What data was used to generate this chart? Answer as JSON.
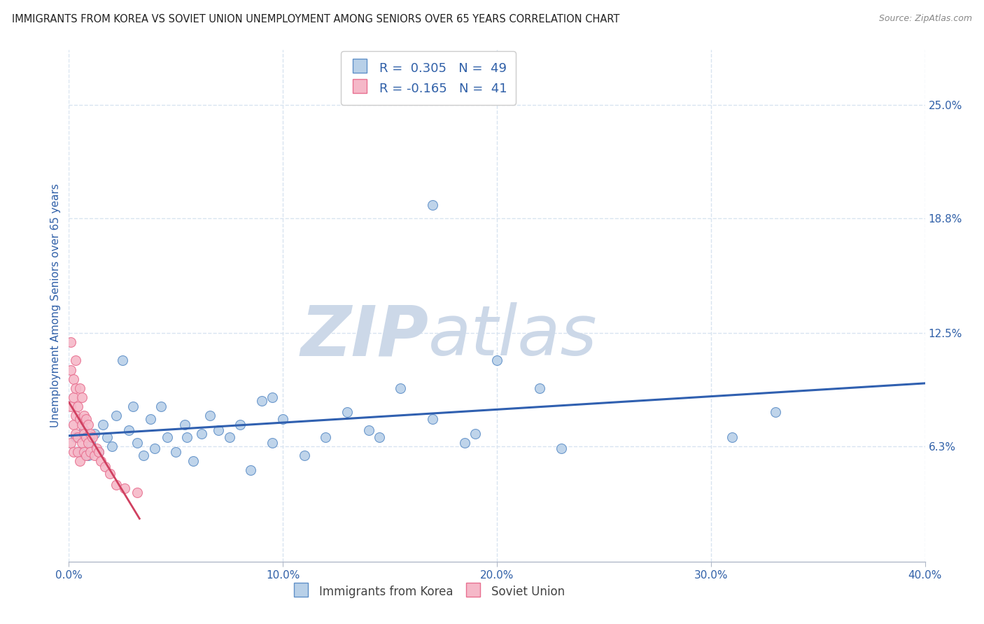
{
  "title": "IMMIGRANTS FROM KOREA VS SOVIET UNION UNEMPLOYMENT AMONG SENIORS OVER 65 YEARS CORRELATION CHART",
  "source": "Source: ZipAtlas.com",
  "xlabel_korea": "Immigrants from Korea",
  "xlabel_soviet": "Soviet Union",
  "ylabel": "Unemployment Among Seniors over 65 years",
  "xlim": [
    0.0,
    0.4
  ],
  "ylim": [
    0.0,
    0.28
  ],
  "ytick_vals": [
    0.063,
    0.125,
    0.188,
    0.25
  ],
  "ytick_labels": [
    "6.3%",
    "12.5%",
    "18.8%",
    "25.0%"
  ],
  "xtick_vals": [
    0.0,
    0.1,
    0.2,
    0.3,
    0.4
  ],
  "xtick_labels": [
    "0.0%",
    "10.0%",
    "20.0%",
    "30.0%",
    "40.0%"
  ],
  "R_korea": 0.305,
  "N_korea": 49,
  "R_soviet": -0.165,
  "N_soviet": 41,
  "color_korea": "#b8d0e8",
  "color_soviet": "#f5b8c8",
  "edge_korea": "#6090c8",
  "edge_soviet": "#e87090",
  "trend_color_korea": "#3060b0",
  "trend_color_soviet": "#d04060",
  "watermark_zip": "ZIP",
  "watermark_atlas": "atlas",
  "watermark_color": "#ccd8e8",
  "korea_x": [
    0.003,
    0.005,
    0.007,
    0.009,
    0.01,
    0.012,
    0.014,
    0.016,
    0.018,
    0.02,
    0.022,
    0.025,
    0.028,
    0.03,
    0.032,
    0.035,
    0.038,
    0.04,
    0.043,
    0.046,
    0.05,
    0.054,
    0.058,
    0.062,
    0.066,
    0.07,
    0.075,
    0.08,
    0.085,
    0.09,
    0.095,
    0.1,
    0.11,
    0.12,
    0.13,
    0.14,
    0.155,
    0.17,
    0.185,
    0.2,
    0.145,
    0.095,
    0.055,
    0.19,
    0.22,
    0.17,
    0.31,
    0.33,
    0.23
  ],
  "korea_y": [
    0.068,
    0.06,
    0.072,
    0.058,
    0.065,
    0.07,
    0.06,
    0.075,
    0.068,
    0.063,
    0.08,
    0.11,
    0.072,
    0.085,
    0.065,
    0.058,
    0.078,
    0.062,
    0.085,
    0.068,
    0.06,
    0.075,
    0.055,
    0.07,
    0.08,
    0.072,
    0.068,
    0.075,
    0.05,
    0.088,
    0.065,
    0.078,
    0.058,
    0.068,
    0.082,
    0.072,
    0.095,
    0.078,
    0.065,
    0.11,
    0.068,
    0.09,
    0.068,
    0.07,
    0.095,
    0.195,
    0.068,
    0.082,
    0.062
  ],
  "soviet_x": [
    0.001,
    0.001,
    0.001,
    0.001,
    0.002,
    0.002,
    0.002,
    0.002,
    0.003,
    0.003,
    0.003,
    0.003,
    0.004,
    0.004,
    0.004,
    0.005,
    0.005,
    0.005,
    0.006,
    0.006,
    0.006,
    0.007,
    0.007,
    0.007,
    0.008,
    0.008,
    0.008,
    0.009,
    0.009,
    0.01,
    0.01,
    0.011,
    0.012,
    0.013,
    0.014,
    0.015,
    0.017,
    0.019,
    0.022,
    0.026,
    0.032
  ],
  "soviet_y": [
    0.105,
    0.085,
    0.12,
    0.065,
    0.09,
    0.1,
    0.075,
    0.06,
    0.095,
    0.08,
    0.11,
    0.07,
    0.085,
    0.068,
    0.06,
    0.095,
    0.078,
    0.055,
    0.075,
    0.09,
    0.065,
    0.08,
    0.07,
    0.06,
    0.068,
    0.078,
    0.058,
    0.065,
    0.075,
    0.07,
    0.06,
    0.068,
    0.058,
    0.062,
    0.06,
    0.055,
    0.052,
    0.048,
    0.042,
    0.04,
    0.038
  ],
  "background_color": "#ffffff",
  "grid_color": "#d8e4f0",
  "axis_color": "#b0b8c8",
  "text_color": "#444444",
  "tick_label_color": "#3060a8",
  "legend_text_color": "#3060a8"
}
